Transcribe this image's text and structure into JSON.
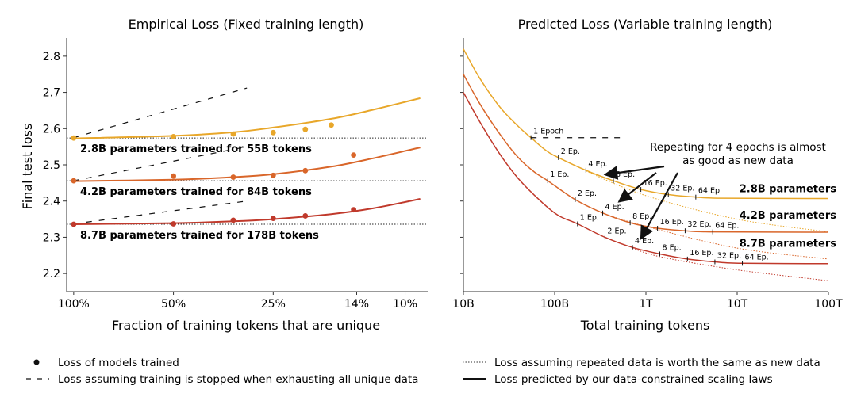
{
  "chart_data": [
    {
      "type": "scatter",
      "title": "Empirical Loss (Fixed training length)",
      "xlabel": "Fraction of training tokens that are unique",
      "ylabel": "Final test loss",
      "x_scale": "log (reversed)",
      "x_ticks": [
        {
          "value": 1.0,
          "label": "100%"
        },
        {
          "value": 0.5,
          "label": "50%"
        },
        {
          "value": 0.25,
          "label": "25%"
        },
        {
          "value": 0.14,
          "label": "14%"
        },
        {
          "value": 0.1,
          "label": "10%"
        }
      ],
      "y_ticks": [
        "2.2",
        "2.3",
        "2.4",
        "2.5",
        "2.6",
        "2.7",
        "2.8"
      ],
      "ylim": [
        2.15,
        2.85
      ],
      "xlim": [
        1.05,
        0.085
      ],
      "series": [
        {
          "name": "2.8B parameters trained for 55B tokens",
          "color": "#E8A72A",
          "points": [
            {
              "x": 1.0,
              "y": 2.574
            },
            {
              "x": 0.5,
              "y": 2.578
            },
            {
              "x": 0.33,
              "y": 2.585
            },
            {
              "x": 0.25,
              "y": 2.589
            },
            {
              "x": 0.2,
              "y": 2.598
            },
            {
              "x": 0.167,
              "y": 2.61
            }
          ],
          "fit_curve": [
            {
              "x": 1.0,
              "y": 2.573
            },
            {
              "x": 0.5,
              "y": 2.58
            },
            {
              "x": 0.33,
              "y": 2.59
            },
            {
              "x": 0.25,
              "y": 2.603
            },
            {
              "x": 0.167,
              "y": 2.627
            },
            {
              "x": 0.125,
              "y": 2.652
            },
            {
              "x": 0.09,
              "y": 2.684
            }
          ],
          "repeat_same_as_new": 2.574,
          "stop_line": [
            {
              "x": 1.0,
              "y": 2.575
            },
            {
              "x": 0.3,
              "y": 2.712
            }
          ]
        },
        {
          "name": "4.2B parameters trained for 84B tokens",
          "color": "#D9662A",
          "points": [
            {
              "x": 1.0,
              "y": 2.456
            },
            {
              "x": 0.5,
              "y": 2.469
            },
            {
              "x": 0.33,
              "y": 2.466
            },
            {
              "x": 0.25,
              "y": 2.471
            },
            {
              "x": 0.2,
              "y": 2.484
            },
            {
              "x": 0.143,
              "y": 2.527
            }
          ],
          "fit_curve": [
            {
              "x": 1.0,
              "y": 2.455
            },
            {
              "x": 0.5,
              "y": 2.459
            },
            {
              "x": 0.33,
              "y": 2.466
            },
            {
              "x": 0.25,
              "y": 2.474
            },
            {
              "x": 0.167,
              "y": 2.495
            },
            {
              "x": 0.125,
              "y": 2.518
            },
            {
              "x": 0.09,
              "y": 2.548
            }
          ],
          "repeat_same_as_new": 2.456,
          "stop_line": [
            {
              "x": 1.0,
              "y": 2.456
            },
            {
              "x": 0.3,
              "y": 2.55
            }
          ]
        },
        {
          "name": "8.7B parameters trained for 178B tokens",
          "color": "#C0392B",
          "points": [
            {
              "x": 1.0,
              "y": 2.336
            },
            {
              "x": 0.5,
              "y": 2.337
            },
            {
              "x": 0.33,
              "y": 2.347
            },
            {
              "x": 0.25,
              "y": 2.352
            },
            {
              "x": 0.2,
              "y": 2.359
            },
            {
              "x": 0.143,
              "y": 2.376
            }
          ],
          "fit_curve": [
            {
              "x": 1.0,
              "y": 2.336
            },
            {
              "x": 0.5,
              "y": 2.339
            },
            {
              "x": 0.33,
              "y": 2.344
            },
            {
              "x": 0.25,
              "y": 2.35
            },
            {
              "x": 0.167,
              "y": 2.364
            },
            {
              "x": 0.125,
              "y": 2.38
            },
            {
              "x": 0.09,
              "y": 2.406
            }
          ],
          "repeat_same_as_new": 2.336,
          "stop_line": [
            {
              "x": 1.0,
              "y": 2.337
            },
            {
              "x": 0.3,
              "y": 2.4
            }
          ]
        }
      ]
    },
    {
      "type": "line",
      "title": "Predicted Loss (Variable training length)",
      "xlabel": "Total training tokens",
      "ylabel": "",
      "x_scale": "log",
      "x_ticks": [
        {
          "value": 10000000000.0,
          "label": "10B"
        },
        {
          "value": 100000000000.0,
          "label": "100B"
        },
        {
          "value": 1000000000000.0,
          "label": "1T"
        },
        {
          "value": 10000000000000.0,
          "label": "10T"
        },
        {
          "value": 100000000000000.0,
          "label": "100T"
        }
      ],
      "ylim": [
        2.15,
        2.85
      ],
      "xlim": [
        10000000000.0,
        100000000000000.0
      ],
      "annotation": "Repeating for 4 epochs is almost\nas good as new data",
      "series": [
        {
          "name": "2.8B parameters",
          "color": "#E8A72A",
          "unique_tokens": 55000000000.0,
          "predicted": [
            {
              "x": 10000000000.0,
              "y": 2.82
            },
            {
              "x": 15000000000.0,
              "y": 2.74
            },
            {
              "x": 25000000000.0,
              "y": 2.66
            },
            {
              "x": 40000000000.0,
              "y": 2.606
            },
            {
              "x": 55000000000.0,
              "y": 2.575
            },
            {
              "x": 80000000000.0,
              "y": 2.54
            },
            {
              "x": 110000000000.0,
              "y": 2.52
            },
            {
              "x": 220000000000.0,
              "y": 2.485
            },
            {
              "x": 440000000000.0,
              "y": 2.456
            },
            {
              "x": 880000000000.0,
              "y": 2.432
            },
            {
              "x": 1760000000000.0,
              "y": 2.418
            },
            {
              "x": 3520000000000.0,
              "y": 2.411
            },
            {
              "x": 7000000000000.0,
              "y": 2.408
            },
            {
              "x": 100000000000000.0,
              "y": 2.407
            }
          ],
          "same_as_new": [
            {
              "x": 220000000000.0,
              "y": 2.483
            },
            {
              "x": 1000000000000.0,
              "y": 2.415
            },
            {
              "x": 10000000000000.0,
              "y": 2.35
            },
            {
              "x": 100000000000000.0,
              "y": 2.315
            }
          ],
          "epoch_marks": [
            {
              "label": "1 Epoch",
              "x": 55000000000.0,
              "y": 2.575
            },
            {
              "label": "2 Ep.",
              "x": 110000000000.0,
              "y": 2.52
            },
            {
              "label": "4 Ep.",
              "x": 220000000000.0,
              "y": 2.485
            },
            {
              "label": "8 Ep.",
              "x": 440000000000.0,
              "y": 2.456
            },
            {
              "label": "16 Ep.",
              "x": 880000000000.0,
              "y": 2.432
            },
            {
              "label": "32 Ep.",
              "x": 1760000000000.0,
              "y": 2.418
            },
            {
              "label": "64 Ep.",
              "x": 3520000000000.0,
              "y": 2.411
            }
          ]
        },
        {
          "name": "4.2B parameters",
          "color": "#D9662A",
          "unique_tokens": 84000000000.0,
          "predicted": [
            {
              "x": 10000000000.0,
              "y": 2.75
            },
            {
              "x": 15000000000.0,
              "y": 2.67
            },
            {
              "x": 25000000000.0,
              "y": 2.585
            },
            {
              "x": 40000000000.0,
              "y": 2.52
            },
            {
              "x": 60000000000.0,
              "y": 2.48
            },
            {
              "x": 84000000000.0,
              "y": 2.456
            },
            {
              "x": 168000000000.0,
              "y": 2.404
            },
            {
              "x": 336000000000.0,
              "y": 2.367
            },
            {
              "x": 672000000000.0,
              "y": 2.34
            },
            {
              "x": 1340000000000.0,
              "y": 2.325
            },
            {
              "x": 2690000000000.0,
              "y": 2.318
            },
            {
              "x": 5400000000000.0,
              "y": 2.315
            },
            {
              "x": 100000000000000.0,
              "y": 2.314
            }
          ],
          "same_as_new": [
            {
              "x": 336000000000.0,
              "y": 2.366
            },
            {
              "x": 1000000000000.0,
              "y": 2.33
            },
            {
              "x": 10000000000000.0,
              "y": 2.27
            },
            {
              "x": 100000000000000.0,
              "y": 2.24
            }
          ],
          "epoch_marks": [
            {
              "label": "1 Ep.",
              "x": 84000000000.0,
              "y": 2.456
            },
            {
              "label": "2 Ep.",
              "x": 168000000000.0,
              "y": 2.404
            },
            {
              "label": "4 Ep.",
              "x": 336000000000.0,
              "y": 2.367
            },
            {
              "label": "8 Ep.",
              "x": 672000000000.0,
              "y": 2.34
            },
            {
              "label": "16 Ep.",
              "x": 1340000000000.0,
              "y": 2.325
            },
            {
              "label": "32 Ep.",
              "x": 2690000000000.0,
              "y": 2.318
            },
            {
              "label": "64 Ep.",
              "x": 5400000000000.0,
              "y": 2.315
            }
          ]
        },
        {
          "name": "8.7B parameters",
          "color": "#C0392B",
          "unique_tokens": 178000000000.0,
          "predicted": [
            {
              "x": 10000000000.0,
              "y": 2.7
            },
            {
              "x": 15000000000.0,
              "y": 2.62
            },
            {
              "x": 25000000000.0,
              "y": 2.53
            },
            {
              "x": 40000000000.0,
              "y": 2.462
            },
            {
              "x": 70000000000.0,
              "y": 2.4
            },
            {
              "x": 110000000000.0,
              "y": 2.36
            },
            {
              "x": 178000000000.0,
              "y": 2.337
            },
            {
              "x": 356000000000.0,
              "y": 2.3
            },
            {
              "x": 712000000000.0,
              "y": 2.272
            },
            {
              "x": 1420000000000.0,
              "y": 2.254
            },
            {
              "x": 2850000000000.0,
              "y": 2.24
            },
            {
              "x": 5700000000000.0,
              "y": 2.232
            },
            {
              "x": 11400000000000.0,
              "y": 2.228
            },
            {
              "x": 100000000000000.0,
              "y": 2.227
            }
          ],
          "same_as_new": [
            {
              "x": 712000000000.0,
              "y": 2.27
            },
            {
              "x": 1500000000000.0,
              "y": 2.245
            },
            {
              "x": 10000000000000.0,
              "y": 2.21
            },
            {
              "x": 100000000000000.0,
              "y": 2.18
            }
          ],
          "epoch_marks": [
            {
              "label": "1 Ep.",
              "x": 178000000000.0,
              "y": 2.337
            },
            {
              "label": "2 Ep.",
              "x": 356000000000.0,
              "y": 2.3
            },
            {
              "label": "4 Ep.",
              "x": 712000000000.0,
              "y": 2.272
            },
            {
              "label": "8 Ep.",
              "x": 1420000000000.0,
              "y": 2.254
            },
            {
              "label": "16 Ep.",
              "x": 2850000000000.0,
              "y": 2.24
            },
            {
              "label": "32 Ep.",
              "x": 5700000000000.0,
              "y": 2.232
            },
            {
              "label": "64 Ep.",
              "x": 11400000000000.0,
              "y": 2.228
            }
          ]
        }
      ]
    }
  ],
  "legend": {
    "scatter": "Loss of models trained",
    "dashed": "Loss assuming training is stopped when exhausting all unique data",
    "dotted": "Loss assuming repeated data is worth the same as new data",
    "solid": "Loss predicted by our data-constrained scaling laws"
  }
}
